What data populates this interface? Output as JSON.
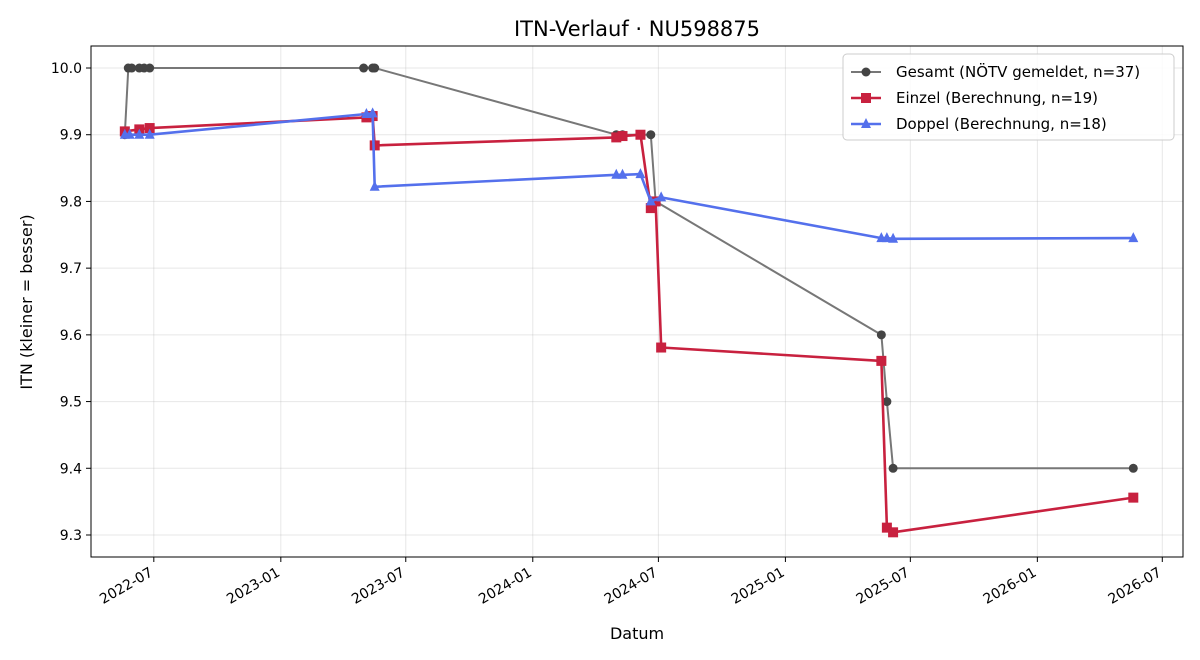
{
  "chart_data": {
    "type": "line",
    "title": "ITN-Verlauf · NU598875",
    "xlabel": "Datum",
    "ylabel": "ITN  (kleiner = besser)",
    "x_type": "date",
    "xlim": [
      "2022-04-01",
      "2026-07-31"
    ],
    "ylim": [
      9.267,
      10.033
    ],
    "x_ticks": [
      "2022-07-01",
      "2023-01-01",
      "2023-07-01",
      "2024-01-01",
      "2024-07-01",
      "2025-01-01",
      "2025-07-01",
      "2026-01-01",
      "2026-07-01"
    ],
    "x_tick_labels": [
      "2022-07",
      "2023-01",
      "2023-07",
      "2024-01",
      "2024-07",
      "2025-01",
      "2025-07",
      "2026-01",
      "2026-07"
    ],
    "y_ticks": [
      9.3,
      9.4,
      9.5,
      9.6,
      9.7,
      9.8,
      9.9,
      10.0
    ],
    "y_tick_labels": [
      "9.3",
      "9.4",
      "9.5",
      "9.6",
      "9.7",
      "9.8",
      "9.9",
      "10.0"
    ],
    "grid": true,
    "legend_position": "top-right",
    "series": [
      {
        "name": "Gesamt (NÖTV gemeldet, n=37)",
        "color": "#777777",
        "marker_color": "#444444",
        "marker": "circle",
        "points": [
          [
            "2022-05-20",
            9.9
          ],
          [
            "2022-05-25",
            10.0
          ],
          [
            "2022-05-30",
            10.0
          ],
          [
            "2022-06-10",
            10.0
          ],
          [
            "2022-06-17",
            10.0
          ],
          [
            "2022-06-25",
            10.0
          ],
          [
            "2023-05-01",
            10.0
          ],
          [
            "2023-05-14",
            10.0
          ],
          [
            "2023-05-17",
            10.0
          ],
          [
            "2024-05-01",
            9.9
          ],
          [
            "2024-05-10",
            9.9
          ],
          [
            "2024-06-05",
            9.9
          ],
          [
            "2024-06-20",
            9.9
          ],
          [
            "2024-06-27",
            9.8
          ],
          [
            "2025-05-20",
            9.6
          ],
          [
            "2025-05-28",
            9.5
          ],
          [
            "2025-06-06",
            9.4
          ],
          [
            "2026-05-20",
            9.4
          ]
        ]
      },
      {
        "name": "Einzel (Berechnung, n=19)",
        "color": "#c8213f",
        "marker_color": "#c8213f",
        "marker": "square",
        "points": [
          [
            "2022-05-20",
            9.905
          ],
          [
            "2022-06-10",
            9.908
          ],
          [
            "2022-06-25",
            9.91
          ],
          [
            "2023-05-05",
            9.926
          ],
          [
            "2023-05-14",
            9.928
          ],
          [
            "2023-05-17",
            9.884
          ],
          [
            "2024-05-01",
            9.896
          ],
          [
            "2024-05-10",
            9.898
          ],
          [
            "2024-06-05",
            9.9
          ],
          [
            "2024-06-20",
            9.79
          ],
          [
            "2024-06-27",
            9.8
          ],
          [
            "2024-07-05",
            9.581
          ],
          [
            "2025-05-20",
            9.561
          ],
          [
            "2025-05-28",
            9.311
          ],
          [
            "2025-06-06",
            9.304
          ],
          [
            "2026-05-20",
            9.356
          ]
        ]
      },
      {
        "name": "Doppel (Berechnung, n=18)",
        "color": "#5470ec",
        "marker_color": "#5470ec",
        "marker": "triangle",
        "points": [
          [
            "2022-05-20",
            9.9
          ],
          [
            "2022-05-27",
            9.9
          ],
          [
            "2022-06-10",
            9.9
          ],
          [
            "2022-06-25",
            9.9
          ],
          [
            "2023-05-05",
            9.931
          ],
          [
            "2023-05-14",
            9.932
          ],
          [
            "2023-05-17",
            9.822
          ],
          [
            "2024-05-01",
            9.84
          ],
          [
            "2024-05-10",
            9.84
          ],
          [
            "2024-06-05",
            9.841
          ],
          [
            "2024-06-20",
            9.8
          ],
          [
            "2024-07-05",
            9.806
          ],
          [
            "2025-05-20",
            9.745
          ],
          [
            "2025-05-28",
            9.745
          ],
          [
            "2025-06-06",
            9.744
          ],
          [
            "2026-05-20",
            9.745
          ]
        ]
      }
    ]
  }
}
